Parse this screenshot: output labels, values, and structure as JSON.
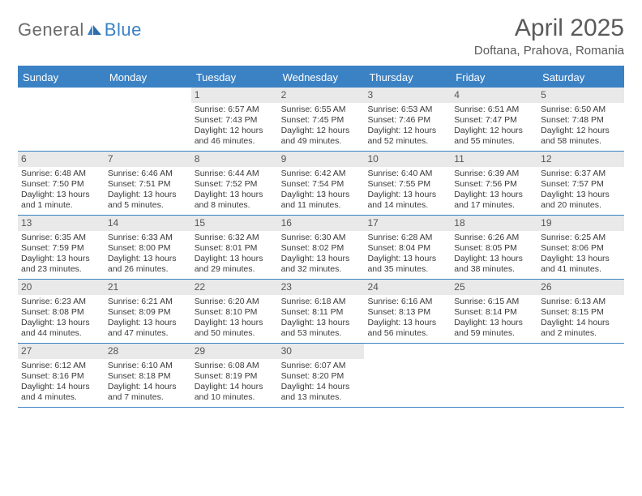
{
  "logo": {
    "text1": "General",
    "text2": "Blue"
  },
  "title": "April 2025",
  "location": "Doftana, Prahova, Romania",
  "colors": {
    "accent": "#3b82c4",
    "daynum_bg": "#e9e9e9",
    "text": "#3a3a3a",
    "title_text": "#5a5a5a",
    "logo_gray": "#6b6b6b"
  },
  "dow": [
    "Sunday",
    "Monday",
    "Tuesday",
    "Wednesday",
    "Thursday",
    "Friday",
    "Saturday"
  ],
  "weeks": [
    [
      {
        "n": "",
        "sr": "",
        "ss": "",
        "dl": ""
      },
      {
        "n": "",
        "sr": "",
        "ss": "",
        "dl": ""
      },
      {
        "n": "1",
        "sr": "Sunrise: 6:57 AM",
        "ss": "Sunset: 7:43 PM",
        "dl": "Daylight: 12 hours and 46 minutes."
      },
      {
        "n": "2",
        "sr": "Sunrise: 6:55 AM",
        "ss": "Sunset: 7:45 PM",
        "dl": "Daylight: 12 hours and 49 minutes."
      },
      {
        "n": "3",
        "sr": "Sunrise: 6:53 AM",
        "ss": "Sunset: 7:46 PM",
        "dl": "Daylight: 12 hours and 52 minutes."
      },
      {
        "n": "4",
        "sr": "Sunrise: 6:51 AM",
        "ss": "Sunset: 7:47 PM",
        "dl": "Daylight: 12 hours and 55 minutes."
      },
      {
        "n": "5",
        "sr": "Sunrise: 6:50 AM",
        "ss": "Sunset: 7:48 PM",
        "dl": "Daylight: 12 hours and 58 minutes."
      }
    ],
    [
      {
        "n": "6",
        "sr": "Sunrise: 6:48 AM",
        "ss": "Sunset: 7:50 PM",
        "dl": "Daylight: 13 hours and 1 minute."
      },
      {
        "n": "7",
        "sr": "Sunrise: 6:46 AM",
        "ss": "Sunset: 7:51 PM",
        "dl": "Daylight: 13 hours and 5 minutes."
      },
      {
        "n": "8",
        "sr": "Sunrise: 6:44 AM",
        "ss": "Sunset: 7:52 PM",
        "dl": "Daylight: 13 hours and 8 minutes."
      },
      {
        "n": "9",
        "sr": "Sunrise: 6:42 AM",
        "ss": "Sunset: 7:54 PM",
        "dl": "Daylight: 13 hours and 11 minutes."
      },
      {
        "n": "10",
        "sr": "Sunrise: 6:40 AM",
        "ss": "Sunset: 7:55 PM",
        "dl": "Daylight: 13 hours and 14 minutes."
      },
      {
        "n": "11",
        "sr": "Sunrise: 6:39 AM",
        "ss": "Sunset: 7:56 PM",
        "dl": "Daylight: 13 hours and 17 minutes."
      },
      {
        "n": "12",
        "sr": "Sunrise: 6:37 AM",
        "ss": "Sunset: 7:57 PM",
        "dl": "Daylight: 13 hours and 20 minutes."
      }
    ],
    [
      {
        "n": "13",
        "sr": "Sunrise: 6:35 AM",
        "ss": "Sunset: 7:59 PM",
        "dl": "Daylight: 13 hours and 23 minutes."
      },
      {
        "n": "14",
        "sr": "Sunrise: 6:33 AM",
        "ss": "Sunset: 8:00 PM",
        "dl": "Daylight: 13 hours and 26 minutes."
      },
      {
        "n": "15",
        "sr": "Sunrise: 6:32 AM",
        "ss": "Sunset: 8:01 PM",
        "dl": "Daylight: 13 hours and 29 minutes."
      },
      {
        "n": "16",
        "sr": "Sunrise: 6:30 AM",
        "ss": "Sunset: 8:02 PM",
        "dl": "Daylight: 13 hours and 32 minutes."
      },
      {
        "n": "17",
        "sr": "Sunrise: 6:28 AM",
        "ss": "Sunset: 8:04 PM",
        "dl": "Daylight: 13 hours and 35 minutes."
      },
      {
        "n": "18",
        "sr": "Sunrise: 6:26 AM",
        "ss": "Sunset: 8:05 PM",
        "dl": "Daylight: 13 hours and 38 minutes."
      },
      {
        "n": "19",
        "sr": "Sunrise: 6:25 AM",
        "ss": "Sunset: 8:06 PM",
        "dl": "Daylight: 13 hours and 41 minutes."
      }
    ],
    [
      {
        "n": "20",
        "sr": "Sunrise: 6:23 AM",
        "ss": "Sunset: 8:08 PM",
        "dl": "Daylight: 13 hours and 44 minutes."
      },
      {
        "n": "21",
        "sr": "Sunrise: 6:21 AM",
        "ss": "Sunset: 8:09 PM",
        "dl": "Daylight: 13 hours and 47 minutes."
      },
      {
        "n": "22",
        "sr": "Sunrise: 6:20 AM",
        "ss": "Sunset: 8:10 PM",
        "dl": "Daylight: 13 hours and 50 minutes."
      },
      {
        "n": "23",
        "sr": "Sunrise: 6:18 AM",
        "ss": "Sunset: 8:11 PM",
        "dl": "Daylight: 13 hours and 53 minutes."
      },
      {
        "n": "24",
        "sr": "Sunrise: 6:16 AM",
        "ss": "Sunset: 8:13 PM",
        "dl": "Daylight: 13 hours and 56 minutes."
      },
      {
        "n": "25",
        "sr": "Sunrise: 6:15 AM",
        "ss": "Sunset: 8:14 PM",
        "dl": "Daylight: 13 hours and 59 minutes."
      },
      {
        "n": "26",
        "sr": "Sunrise: 6:13 AM",
        "ss": "Sunset: 8:15 PM",
        "dl": "Daylight: 14 hours and 2 minutes."
      }
    ],
    [
      {
        "n": "27",
        "sr": "Sunrise: 6:12 AM",
        "ss": "Sunset: 8:16 PM",
        "dl": "Daylight: 14 hours and 4 minutes."
      },
      {
        "n": "28",
        "sr": "Sunrise: 6:10 AM",
        "ss": "Sunset: 8:18 PM",
        "dl": "Daylight: 14 hours and 7 minutes."
      },
      {
        "n": "29",
        "sr": "Sunrise: 6:08 AM",
        "ss": "Sunset: 8:19 PM",
        "dl": "Daylight: 14 hours and 10 minutes."
      },
      {
        "n": "30",
        "sr": "Sunrise: 6:07 AM",
        "ss": "Sunset: 8:20 PM",
        "dl": "Daylight: 14 hours and 13 minutes."
      },
      {
        "n": "",
        "sr": "",
        "ss": "",
        "dl": ""
      },
      {
        "n": "",
        "sr": "",
        "ss": "",
        "dl": ""
      },
      {
        "n": "",
        "sr": "",
        "ss": "",
        "dl": ""
      }
    ]
  ]
}
